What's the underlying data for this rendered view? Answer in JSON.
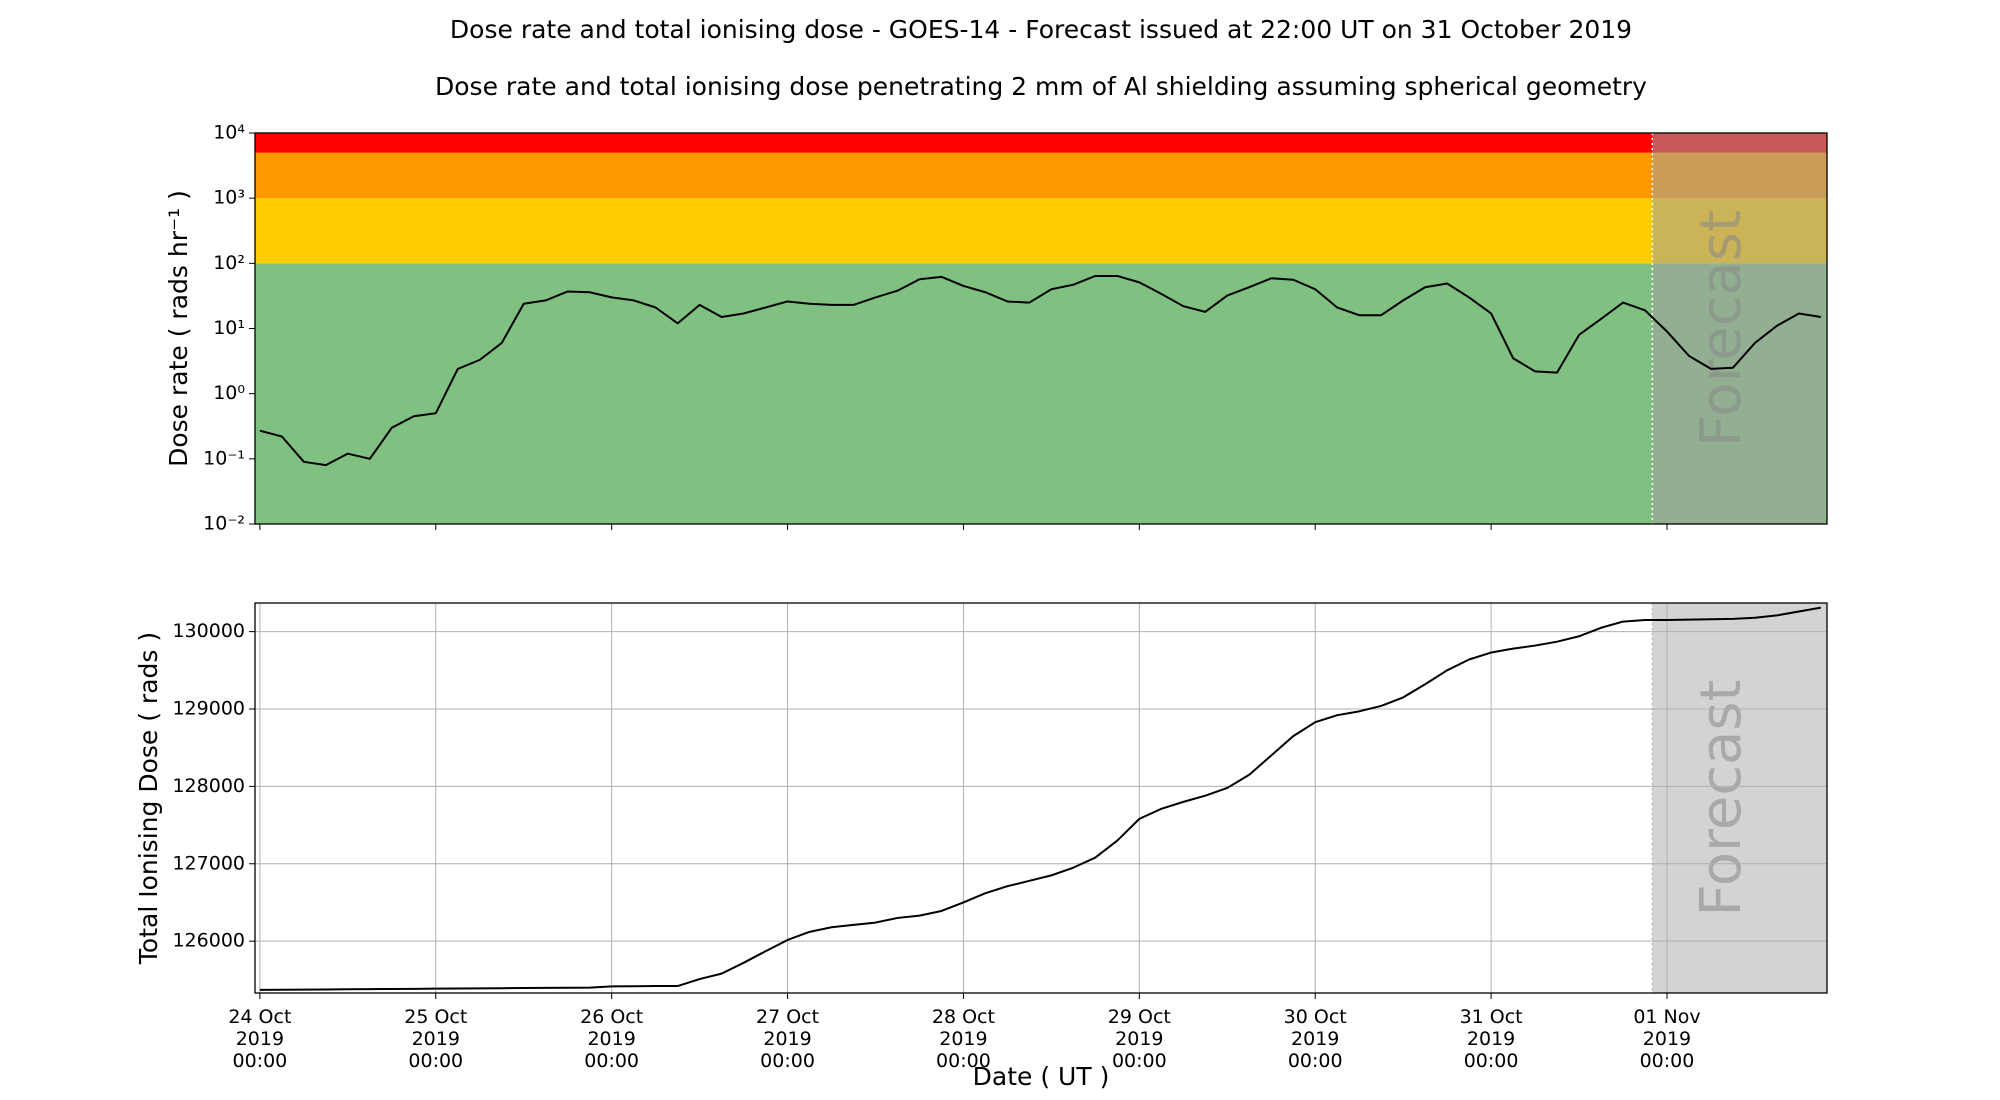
{
  "chart_data": [
    {
      "type": "line",
      "title": "Dose rate and total ionising dose - GOES-14 - Forecast issued at 22:00 UT on 31 October 2019",
      "subtitle": "Dose rate and total ionising dose penetrating 2 mm of Al shielding assuming spherical geometry",
      "ylabel": "Dose rate ( rads hr⁻¹ )",
      "log_y": true,
      "grid": false,
      "annotation": "Forecast",
      "forecast_start": "2019-10-31 22:00",
      "bands": [
        {
          "from": 0.01,
          "to": 100,
          "color": "#80c080"
        },
        {
          "from": 100,
          "to": 1000,
          "color": "#ffcc00"
        },
        {
          "from": 1000,
          "to": 5000,
          "color": "#ff9900"
        },
        {
          "from": 5000,
          "to": 10000,
          "color": "#ff0000"
        }
      ],
      "xlim": [
        "2019-10-23 23:20",
        "2019-11-01 21:50"
      ],
      "xticks": [
        "2019-10-24 00:00",
        "2019-10-25 00:00",
        "2019-10-26 00:00",
        "2019-10-27 00:00",
        "2019-10-28 00:00",
        "2019-10-29 00:00",
        "2019-10-30 00:00",
        "2019-10-31 00:00",
        "2019-11-01 00:00"
      ],
      "ylim": [
        0.01,
        10000
      ],
      "yticks": [
        {
          "value": 0.01,
          "label": "10⁻²"
        },
        {
          "value": 0.1,
          "label": "10⁻¹"
        },
        {
          "value": 1,
          "label": "10⁰"
        },
        {
          "value": 10,
          "label": "10¹"
        },
        {
          "value": 100,
          "label": "10²"
        },
        {
          "value": 1000,
          "label": "10³"
        },
        {
          "value": 10000,
          "label": "10⁴"
        }
      ],
      "x": [
        "2019-10-24 00:00",
        "2019-10-24 03:00",
        "2019-10-24 06:00",
        "2019-10-24 09:00",
        "2019-10-24 12:00",
        "2019-10-24 15:00",
        "2019-10-24 18:00",
        "2019-10-24 21:00",
        "2019-10-25 00:00",
        "2019-10-25 03:00",
        "2019-10-25 06:00",
        "2019-10-25 09:00",
        "2019-10-25 12:00",
        "2019-10-25 15:00",
        "2019-10-25 18:00",
        "2019-10-25 21:00",
        "2019-10-26 00:00",
        "2019-10-26 03:00",
        "2019-10-26 06:00",
        "2019-10-26 09:00",
        "2019-10-26 12:00",
        "2019-10-26 15:00",
        "2019-10-26 18:00",
        "2019-10-26 21:00",
        "2019-10-27 00:00",
        "2019-10-27 03:00",
        "2019-10-27 06:00",
        "2019-10-27 09:00",
        "2019-10-27 12:00",
        "2019-10-27 15:00",
        "2019-10-27 18:00",
        "2019-10-27 21:00",
        "2019-10-28 00:00",
        "2019-10-28 03:00",
        "2019-10-28 06:00",
        "2019-10-28 09:00",
        "2019-10-28 12:00",
        "2019-10-28 15:00",
        "2019-10-28 18:00",
        "2019-10-28 21:00",
        "2019-10-29 00:00",
        "2019-10-29 03:00",
        "2019-10-29 06:00",
        "2019-10-29 09:00",
        "2019-10-29 12:00",
        "2019-10-29 15:00",
        "2019-10-29 18:00",
        "2019-10-29 21:00",
        "2019-10-30 00:00",
        "2019-10-30 03:00",
        "2019-10-30 06:00",
        "2019-10-30 09:00",
        "2019-10-30 12:00",
        "2019-10-30 15:00",
        "2019-10-30 18:00",
        "2019-10-30 21:00",
        "2019-10-31 00:00",
        "2019-10-31 03:00",
        "2019-10-31 06:00",
        "2019-10-31 09:00",
        "2019-10-31 12:00",
        "2019-10-31 15:00",
        "2019-10-31 18:00",
        "2019-10-31 21:00",
        "2019-11-01 00:00",
        "2019-11-01 03:00",
        "2019-11-01 06:00",
        "2019-11-01 09:00",
        "2019-11-01 12:00",
        "2019-11-01 15:00",
        "2019-11-01 18:00",
        "2019-11-01 21:00"
      ],
      "series": [
        {
          "name": "Dose rate",
          "color": "#000000",
          "values": [
            0.27,
            0.22,
            0.09,
            0.08,
            0.12,
            0.1,
            0.3,
            0.45,
            0.5,
            2.4,
            3.3,
            6,
            24,
            27,
            37,
            36,
            30,
            27,
            21,
            12,
            23,
            15,
            17,
            21,
            26,
            24,
            23,
            23,
            30,
            38,
            57,
            62,
            45,
            36,
            26,
            25,
            40,
            47,
            64,
            64,
            51,
            34,
            22,
            18,
            32,
            43,
            59,
            56,
            40,
            21,
            16,
            16,
            27,
            43,
            49,
            30,
            17,
            3.5,
            2.2,
            2.1,
            8,
            14,
            25,
            19,
            9,
            3.8,
            2.4,
            2.5,
            6,
            11,
            17,
            15
          ]
        }
      ]
    },
    {
      "type": "line",
      "ylabel": "Total Ionising Dose ( rads )",
      "xlabel": "Date ( UT )",
      "log_y": false,
      "grid": true,
      "annotation": "Forecast",
      "forecast_start": "2019-10-31 22:00",
      "xlim": [
        "2019-10-23 23:20",
        "2019-11-01 21:50"
      ],
      "xticks": [
        {
          "value": "2019-10-24 00:00",
          "label": "24 Oct\n2019\n00:00"
        },
        {
          "value": "2019-10-25 00:00",
          "label": "25 Oct\n2019\n00:00"
        },
        {
          "value": "2019-10-26 00:00",
          "label": "26 Oct\n2019\n00:00"
        },
        {
          "value": "2019-10-27 00:00",
          "label": "27 Oct\n2019\n00:00"
        },
        {
          "value": "2019-10-28 00:00",
          "label": "28 Oct\n2019\n00:00"
        },
        {
          "value": "2019-10-29 00:00",
          "label": "29 Oct\n2019\n00:00"
        },
        {
          "value": "2019-10-30 00:00",
          "label": "30 Oct\n2019\n00:00"
        },
        {
          "value": "2019-10-31 00:00",
          "label": "31 Oct\n2019\n00:00"
        },
        {
          "value": "2019-11-01 00:00",
          "label": "01 Nov\n2019\n00:00"
        }
      ],
      "ylim": [
        125330,
        130370
      ],
      "yticks": [
        126000,
        127000,
        128000,
        129000,
        130000
      ],
      "x": [
        "2019-10-24 00:00",
        "2019-10-24 03:00",
        "2019-10-24 06:00",
        "2019-10-24 09:00",
        "2019-10-24 12:00",
        "2019-10-24 15:00",
        "2019-10-24 18:00",
        "2019-10-24 21:00",
        "2019-10-25 00:00",
        "2019-10-25 03:00",
        "2019-10-25 06:00",
        "2019-10-25 09:00",
        "2019-10-25 12:00",
        "2019-10-25 15:00",
        "2019-10-25 18:00",
        "2019-10-25 21:00",
        "2019-10-26 00:00",
        "2019-10-26 03:00",
        "2019-10-26 06:00",
        "2019-10-26 09:00",
        "2019-10-26 12:00",
        "2019-10-26 15:00",
        "2019-10-26 18:00",
        "2019-10-26 21:00",
        "2019-10-27 00:00",
        "2019-10-27 03:00",
        "2019-10-27 06:00",
        "2019-10-27 09:00",
        "2019-10-27 12:00",
        "2019-10-27 15:00",
        "2019-10-27 18:00",
        "2019-10-27 21:00",
        "2019-10-28 00:00",
        "2019-10-28 03:00",
        "2019-10-28 06:00",
        "2019-10-28 09:00",
        "2019-10-28 12:00",
        "2019-10-28 15:00",
        "2019-10-28 18:00",
        "2019-10-28 21:00",
        "2019-10-29 00:00",
        "2019-10-29 03:00",
        "2019-10-29 06:00",
        "2019-10-29 09:00",
        "2019-10-29 12:00",
        "2019-10-29 15:00",
        "2019-10-29 18:00",
        "2019-10-29 21:00",
        "2019-10-30 00:00",
        "2019-10-30 03:00",
        "2019-10-30 06:00",
        "2019-10-30 09:00",
        "2019-10-30 12:00",
        "2019-10-30 15:00",
        "2019-10-30 18:00",
        "2019-10-30 21:00",
        "2019-10-31 00:00",
        "2019-10-31 03:00",
        "2019-10-31 06:00",
        "2019-10-31 09:00",
        "2019-10-31 12:00",
        "2019-10-31 15:00",
        "2019-10-31 18:00",
        "2019-10-31 21:00",
        "2019-11-01 00:00",
        "2019-11-01 03:00",
        "2019-11-01 06:00",
        "2019-11-01 09:00",
        "2019-11-01 12:00",
        "2019-11-01 15:00",
        "2019-11-01 18:00",
        "2019-11-01 21:00"
      ],
      "series": [
        {
          "name": "Total ionising dose",
          "color": "#000000",
          "values": [
            125370,
            125372,
            125374,
            125376,
            125378,
            125380,
            125382,
            125384,
            125386,
            125388,
            125390,
            125392,
            125394,
            125396,
            125398,
            125400,
            125415,
            125417,
            125420,
            125420,
            125510,
            125580,
            125720,
            125870,
            126015,
            126120,
            126180,
            126210,
            126240,
            126300,
            126330,
            126390,
            126500,
            126620,
            126710,
            126780,
            126850,
            126950,
            127080,
            127300,
            127580,
            127710,
            127800,
            127880,
            127980,
            128150,
            128400,
            128650,
            128830,
            128920,
            128970,
            129040,
            129150,
            129320,
            129500,
            129640,
            129730,
            129780,
            129820,
            129870,
            129940,
            130050,
            130130,
            130150,
            130150,
            130155,
            130160,
            130165,
            130180,
            130210,
            130260,
            130310
          ]
        }
      ]
    }
  ]
}
